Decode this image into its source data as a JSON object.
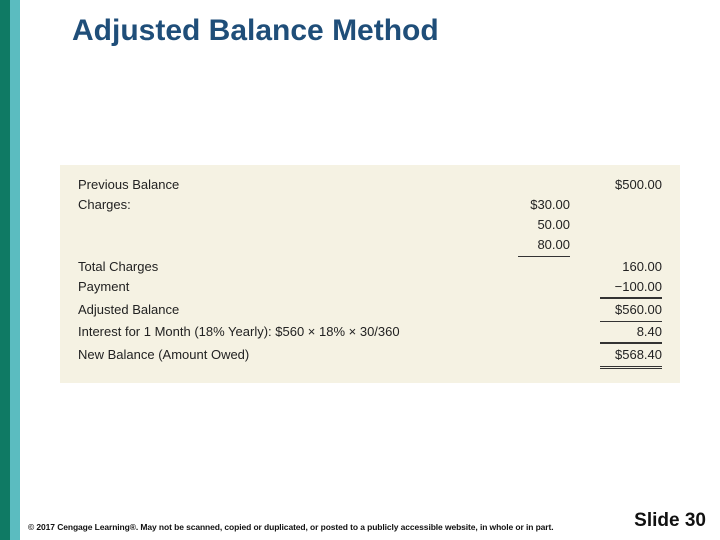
{
  "accent_colors": {
    "a": "#0f7a64",
    "b": "#5bbcc0"
  },
  "title": "Adjusted Balance Method",
  "table": {
    "background": "#f5f2e3",
    "rows": [
      {
        "label": "Previous Balance",
        "mid": "",
        "right": "$500.00"
      },
      {
        "label": "Charges:",
        "mid": "$30.00",
        "right": ""
      },
      {
        "label": "",
        "mid": "50.00",
        "right": ""
      },
      {
        "label": "",
        "mid": "80.00",
        "right": "",
        "mid_underline": true
      },
      {
        "label": "Total Charges",
        "mid": "",
        "right": "160.00"
      },
      {
        "label": "Payment",
        "mid": "",
        "right": "−100.00",
        "right_underline": true
      },
      {
        "label": "Adjusted Balance",
        "mid": "",
        "right": "$560.00",
        "right_box": true
      },
      {
        "label": "Interest for 1 Month (18% Yearly): $560 × 18% × 30/360",
        "mid": "",
        "right": "8.40",
        "right_underline": true
      },
      {
        "label": "New Balance (Amount Owed)",
        "mid": "",
        "right": "$568.40",
        "right_double": true
      }
    ]
  },
  "footer": {
    "copyright": "© 2017 Cengage Learning®. May not be scanned, copied or duplicated, or posted to a publicly accessible website, in whole or in part.",
    "slide": "Slide 30"
  }
}
